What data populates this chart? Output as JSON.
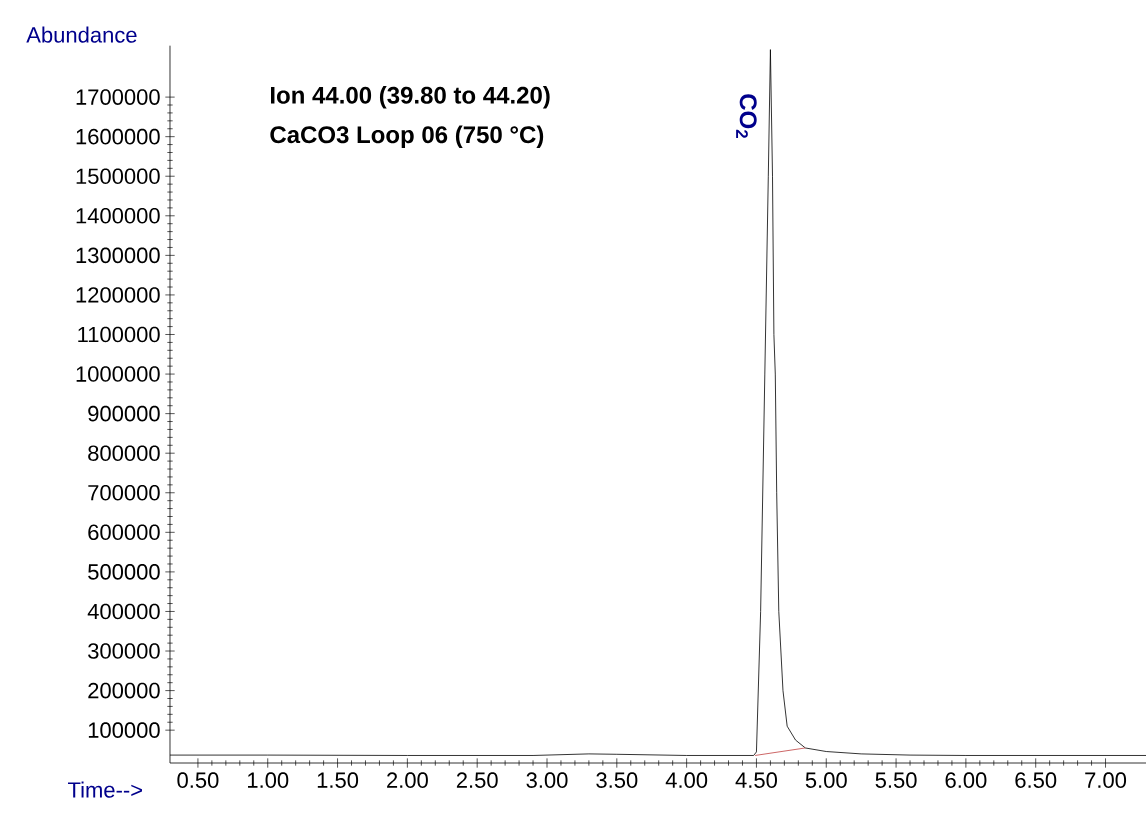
{
  "chart_data": {
    "type": "line",
    "xlabel": "Time-->",
    "ylabel": "Abundance",
    "annotations": [
      "Ion  44.00 (39.80 to 44.20)",
      "CaCO3 Loop 06 (750 °C)",
      {
        "text": "CO$_{2}$",
        "x": 4.6,
        "y": 1820000
      }
    ],
    "series": [
      {
        "color": "#000000",
        "x": [
          0.3,
          1.0,
          2.0,
          2.9,
          3.0,
          3.3,
          3.5,
          4.0,
          4.48,
          4.5,
          4.53,
          4.56,
          4.585,
          4.6,
          4.615,
          4.625,
          4.635,
          4.645,
          4.66,
          4.69,
          4.72,
          4.78,
          4.85,
          5.0,
          5.25,
          5.6,
          6.0,
          7.29
        ],
        "values": [
          37000,
          37000,
          36000,
          36000,
          37000,
          40000,
          39000,
          36000,
          36000,
          45000,
          400000,
          1000000,
          1500000,
          1820000,
          1500000,
          1100000,
          1000000,
          700000,
          400000,
          200000,
          110000,
          75000,
          55000,
          46000,
          40000,
          37000,
          36000,
          36000
        ]
      },
      {
        "color": "#c04040",
        "x": [
          4.49,
          4.85
        ],
        "values": [
          36000,
          55000
        ]
      }
    ],
    "xlim": [
      0.3,
      7.29
    ],
    "ylim": [
      17000,
      1830000
    ],
    "xticks": [
      {
        "value": 0.5,
        "label": "0.50"
      },
      {
        "value": 1.0,
        "label": "1.00"
      },
      {
        "value": 1.5,
        "label": "1.50"
      },
      {
        "value": 2.0,
        "label": "2.00"
      },
      {
        "value": 2.5,
        "label": "2.50"
      },
      {
        "value": 3.0,
        "label": "3.00"
      },
      {
        "value": 3.5,
        "label": "3.50"
      },
      {
        "value": 4.0,
        "label": "4.00"
      },
      {
        "value": 4.5,
        "label": "4.50"
      },
      {
        "value": 5.0,
        "label": "5.00"
      },
      {
        "value": 5.5,
        "label": "5.50"
      },
      {
        "value": 6.0,
        "label": "6.00"
      },
      {
        "value": 6.5,
        "label": "6.50"
      },
      {
        "value": 7.0,
        "label": "7.00"
      }
    ],
    "yticks": [
      100000,
      200000,
      300000,
      400000,
      500000,
      600000,
      700000,
      800000,
      900000,
      1000000,
      1100000,
      1200000,
      1300000,
      1400000,
      1500000,
      1600000,
      1700000
    ],
    "grid": false,
    "legend": false,
    "marker": "none",
    "line_style": "solid"
  }
}
